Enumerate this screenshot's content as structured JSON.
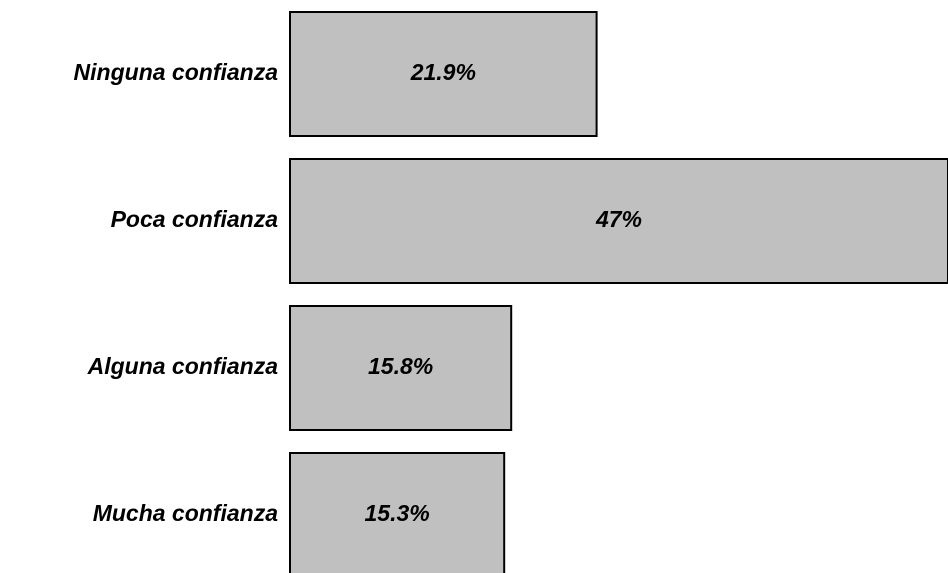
{
  "chart_data": {
    "type": "barh",
    "categories": [
      "Ninguna confianza",
      "Poca confianza",
      "Alguna confianza",
      "Mucha confianza"
    ],
    "values": [
      21.9,
      47,
      15.8,
      15.3
    ],
    "value_labels": [
      "21.9%",
      "47%",
      "15.8%",
      "15.3%"
    ],
    "color": "#c0c0c0"
  }
}
